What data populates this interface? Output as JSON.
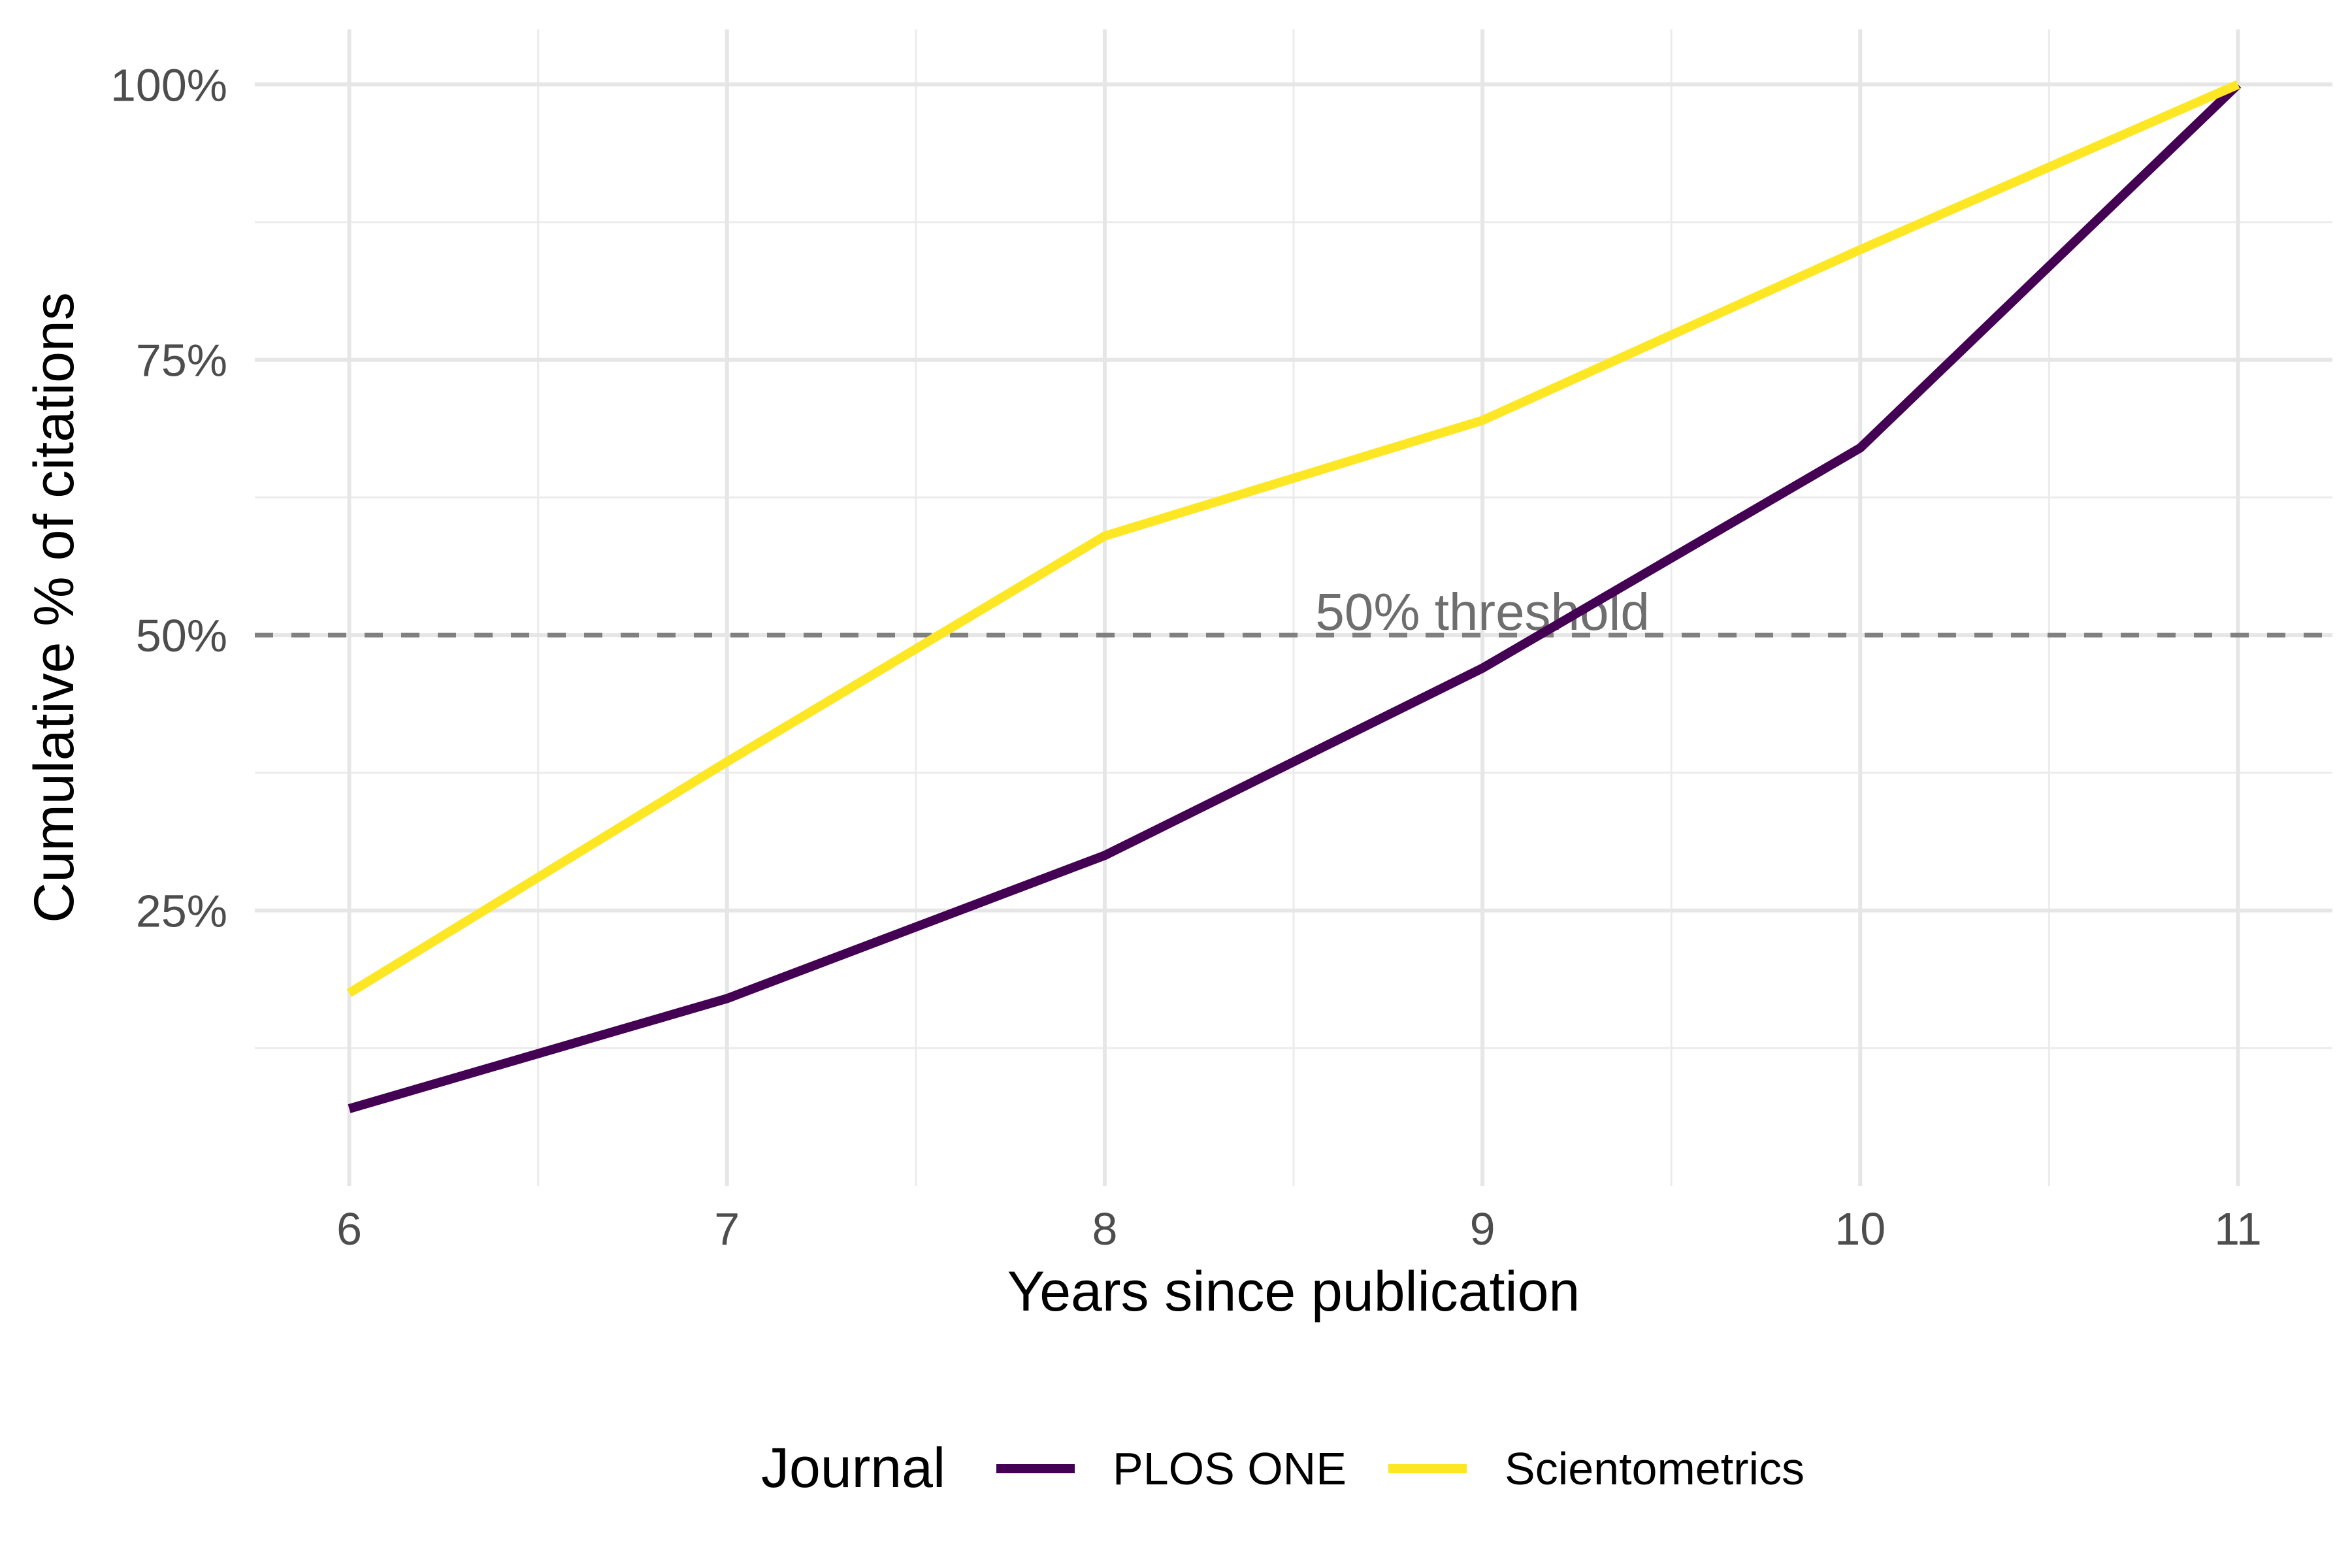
{
  "chart_data": {
    "type": "line",
    "title": "",
    "xlabel": "Years since publication",
    "ylabel": "Cumulative % of citations",
    "xlim": [
      5.75,
      11.25
    ],
    "ylim": [
      0.0,
      1.05
    ],
    "x_ticks": [
      6,
      7,
      8,
      9,
      10,
      11
    ],
    "x_tick_labels": [
      "6",
      "7",
      "8",
      "9",
      "10",
      "11"
    ],
    "y_ticks": [
      0.25,
      0.5,
      0.75,
      1.0
    ],
    "y_tick_labels": [
      "25%",
      "50%",
      "75%",
      "100%"
    ],
    "x_minor_ticks": [
      6.5,
      7.5,
      8.5,
      9.5,
      10.5
    ],
    "y_minor_ticks": [
      0.125,
      0.375,
      0.625,
      0.875
    ],
    "grid": true,
    "legend": {
      "title": "Journal",
      "position": "bottom"
    },
    "x": [
      6,
      7,
      8,
      9,
      10,
      11
    ],
    "series": [
      {
        "name": "PLOS ONE",
        "color": "#440154",
        "values": [
          0.07,
          0.17,
          0.3,
          0.47,
          0.67,
          1.0
        ]
      },
      {
        "name": "Scientometrics",
        "color": "#FDE725",
        "values": [
          0.175,
          0.385,
          0.59,
          0.695,
          0.85,
          1.0
        ]
      }
    ],
    "reference_line": {
      "y": 0.5,
      "label": "50% threshold",
      "label_x": 9,
      "color": "#808080",
      "style": "dashed"
    }
  }
}
